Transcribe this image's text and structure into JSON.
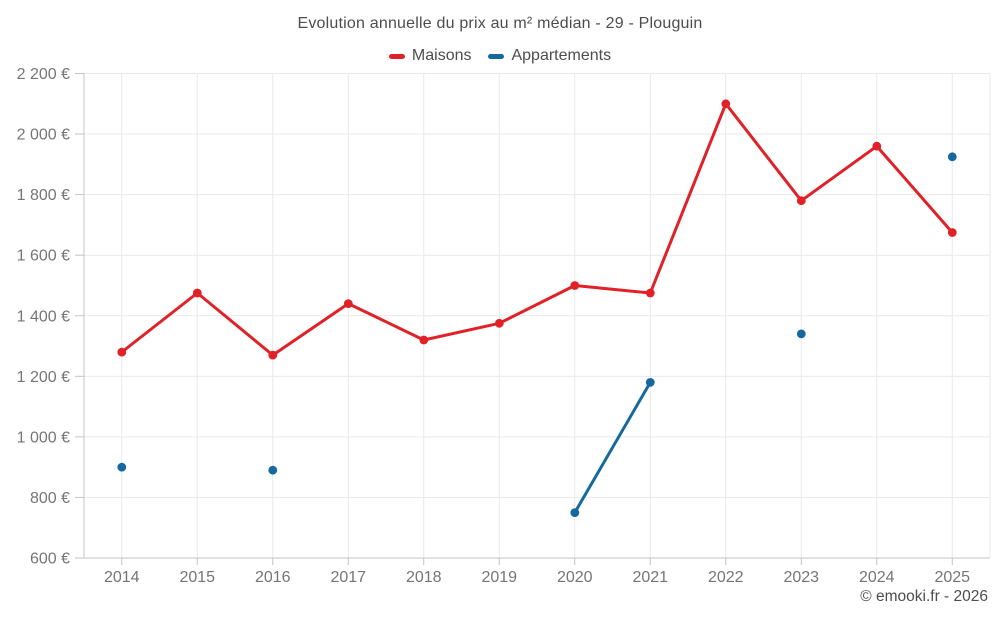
{
  "page": {
    "title": "Evolution annuelle du prix au m² médian - 29 - Plouguin",
    "watermark": "© emooki.fr - 2026"
  },
  "legend": {
    "items": [
      {
        "label": "Maisons",
        "color": "#e02228"
      },
      {
        "label": "Appartements",
        "color": "#15699f"
      }
    ]
  },
  "chart_data": {
    "type": "line",
    "title": "Evolution annuelle du prix au m² médian - 29 - Plouguin",
    "categories": [
      "2014",
      "2015",
      "2016",
      "2017",
      "2018",
      "2019",
      "2020",
      "2021",
      "2022",
      "2023",
      "2024",
      "2025"
    ],
    "series": [
      {
        "name": "Maisons",
        "color": "#e02228",
        "values": [
          1280,
          1475,
          1270,
          1440,
          1320,
          1375,
          1500,
          1475,
          2100,
          1780,
          1960,
          1675
        ]
      },
      {
        "name": "Appartements",
        "color": "#15699f",
        "values": [
          900,
          null,
          890,
          null,
          null,
          null,
          750,
          1180,
          null,
          1340,
          null,
          1925
        ]
      }
    ],
    "ylim": [
      600,
      2200
    ],
    "ytick_step": 200,
    "ytick_suffix": "€",
    "xlabel": "",
    "ylabel": "",
    "grid": true,
    "legend_position": "top",
    "colors": {
      "grid": "#e9e9e9",
      "axis": "#c4c4c4",
      "tick_label": "#757575",
      "title_text": "#4d4d4d"
    }
  }
}
